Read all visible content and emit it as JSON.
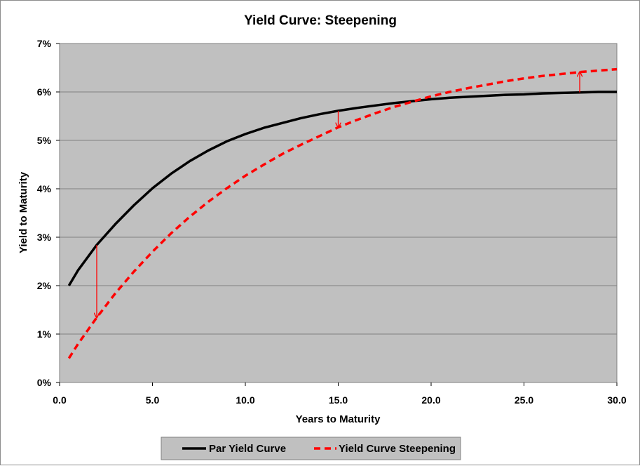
{
  "chart_data": {
    "type": "line",
    "title": "Yield Curve: Steepening",
    "xlabel": "Years to Maturity",
    "ylabel": "Yield to Maturity",
    "xlim": [
      0,
      30
    ],
    "ylim": [
      0,
      0.07
    ],
    "x_ticks": [
      "0.0",
      "5.0",
      "10.0",
      "15.0",
      "20.0",
      "25.0",
      "30.0"
    ],
    "y_ticks": [
      "0%",
      "1%",
      "2%",
      "3%",
      "4%",
      "5%",
      "6%",
      "7%"
    ],
    "grid": "horizontal",
    "plot_background": "#c0c0c0",
    "legend_position": "bottom",
    "series": [
      {
        "name": "Par Yield Curve",
        "color": "#000000",
        "style": "solid",
        "x": [
          0.5,
          1,
          2,
          3,
          4,
          5,
          6,
          7,
          8,
          9,
          10,
          11,
          12,
          13,
          14,
          15,
          16,
          17,
          18,
          19,
          20,
          21,
          22,
          23,
          24,
          25,
          26,
          27,
          28,
          29,
          30
        ],
        "y": [
          0.02,
          0.0232,
          0.0284,
          0.0327,
          0.0366,
          0.0401,
          0.0431,
          0.0457,
          0.0479,
          0.0498,
          0.0513,
          0.0526,
          0.0536,
          0.0546,
          0.0554,
          0.0561,
          0.0567,
          0.0572,
          0.0577,
          0.0581,
          0.0585,
          0.0588,
          0.059,
          0.0592,
          0.0594,
          0.0595,
          0.0597,
          0.0598,
          0.0599,
          0.06,
          0.06
        ]
      },
      {
        "name": "Yield Curve Steepening",
        "color": "#ff0000",
        "style": "dashed",
        "x": [
          0.5,
          1,
          2,
          3,
          4,
          5,
          6,
          7,
          8,
          9,
          10,
          11,
          12,
          13,
          14,
          15,
          16,
          17,
          18,
          19,
          20,
          21,
          22,
          23,
          24,
          25,
          26,
          27,
          28,
          29,
          30
        ],
        "y": [
          0.005,
          0.008,
          0.0134,
          0.0184,
          0.0229,
          0.027,
          0.0308,
          0.0342,
          0.0373,
          0.0401,
          0.0427,
          0.045,
          0.0472,
          0.0491,
          0.0509,
          0.0527,
          0.0542,
          0.0556,
          0.0569,
          0.058,
          0.0591,
          0.06,
          0.0608,
          0.0615,
          0.0622,
          0.0628,
          0.0633,
          0.0637,
          0.0641,
          0.0644,
          0.0647
        ]
      }
    ],
    "annotations": [
      {
        "type": "arrow",
        "x": 2,
        "from": 0.0284,
        "to": 0.0134,
        "color": "#ff0000"
      },
      {
        "type": "arrow",
        "x": 15,
        "from": 0.0561,
        "to": 0.0527,
        "color": "#ff0000"
      },
      {
        "type": "arrow",
        "x": 28,
        "from": 0.0599,
        "to": 0.0641,
        "color": "#ff0000"
      }
    ]
  }
}
